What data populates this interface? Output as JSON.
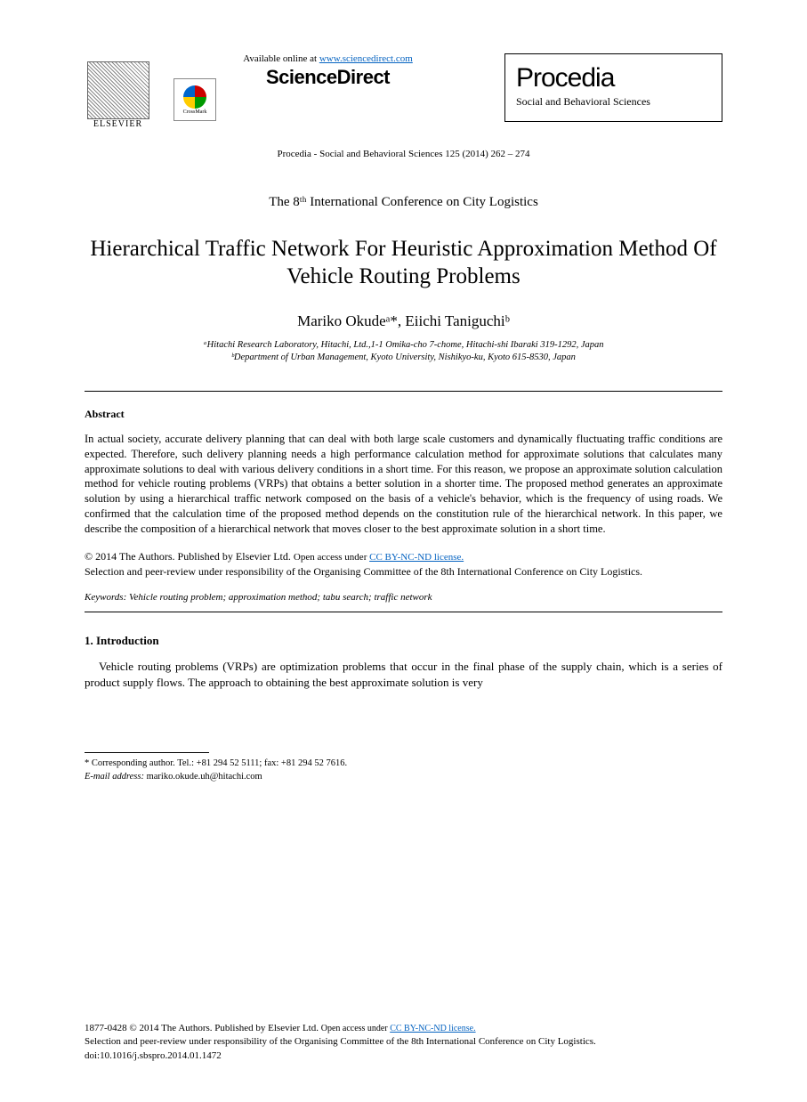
{
  "header": {
    "elsevier_label": "ELSEVIER",
    "available_text": "Available online at ",
    "available_link": "www.sciencedirect.com",
    "sciencedirect": "ScienceDirect",
    "crossmark": "CrossMark",
    "procedia_title": "Procedia",
    "procedia_sub": "Social and Behavioral Sciences",
    "journal_ref": "Procedia - Social and Behavioral Sciences 125 (2014) 262 – 274"
  },
  "conference": "The 8ᵗʰ International Conference on City Logistics",
  "title": "Hierarchical Traffic Network For Heuristic Approximation Method Of Vehicle Routing Problems",
  "authors": "Mariko Okudeᵃ*, Eiichi Taniguchiᵇ",
  "affiliations": {
    "a": "ᵃHitachi Research Laboratory, Hitachi, Ltd.,1-1 Omika-cho 7-chome, Hitachi-shi Ibaraki 319-1292, Japan",
    "b": "ᵇDepartment of Urban Management, Kyoto University, Nishikyo-ku, Kyoto 615-8530, Japan"
  },
  "abstract": {
    "heading": "Abstract",
    "text": "In actual society, accurate delivery planning that can deal with both large scale customers and dynamically fluctuating traffic conditions are expected. Therefore, such delivery planning needs a high performance calculation method for approximate solutions that calculates many approximate solutions to deal with various delivery conditions in a short time. For this reason, we propose an approximate solution calculation method for vehicle routing problems (VRPs) that obtains a better solution in a shorter time. The proposed method generates an approximate solution by using a hierarchical traffic network composed on the basis of a vehicle's behavior, which is the frequency of using roads. We confirmed that the calculation time of the proposed method depends on the constitution rule of the hierarchical network. In this paper, we describe the composition of a hierarchical network that moves closer to the best approximate solution in a short time."
  },
  "copyright": {
    "line1_a": "© 2014 The Authors. Published by Elsevier Ltd. ",
    "line1_b": "Open access under ",
    "license_link": "CC BY-NC-ND license.",
    "line2": "Selection and peer-review under responsibility of the Organising Committee of the 8th International Conference on City Logistics."
  },
  "keywords": {
    "label": "Keywords",
    "text": ": Vehicle routing problem; approximation method; tabu search; traffic network"
  },
  "section1": {
    "heading": "1. Introduction",
    "text": "Vehicle routing problems (VRPs) are optimization problems that occur in the final phase of the supply chain, which is a series of product supply flows. The approach to obtaining the best approximate solution is very"
  },
  "footnote": {
    "corresponding": "* Corresponding author. Tel.: +81 294 52 5111; fax: +81 294 52 7616.",
    "email_label": "E-mail address:",
    "email": " mariko.okude.uh@hitachi.com"
  },
  "footer": {
    "line1_a": "1877-0428 © 2014 The Authors. Published by Elsevier Ltd. ",
    "line1_b": "Open access under ",
    "license_link": "CC BY-NC-ND license.",
    "line2": "Selection and peer-review under responsibility of the Organising Committee of the 8th International Conference on City Logistics.",
    "doi": "doi:10.1016/j.sbspro.2014.01.1472"
  }
}
